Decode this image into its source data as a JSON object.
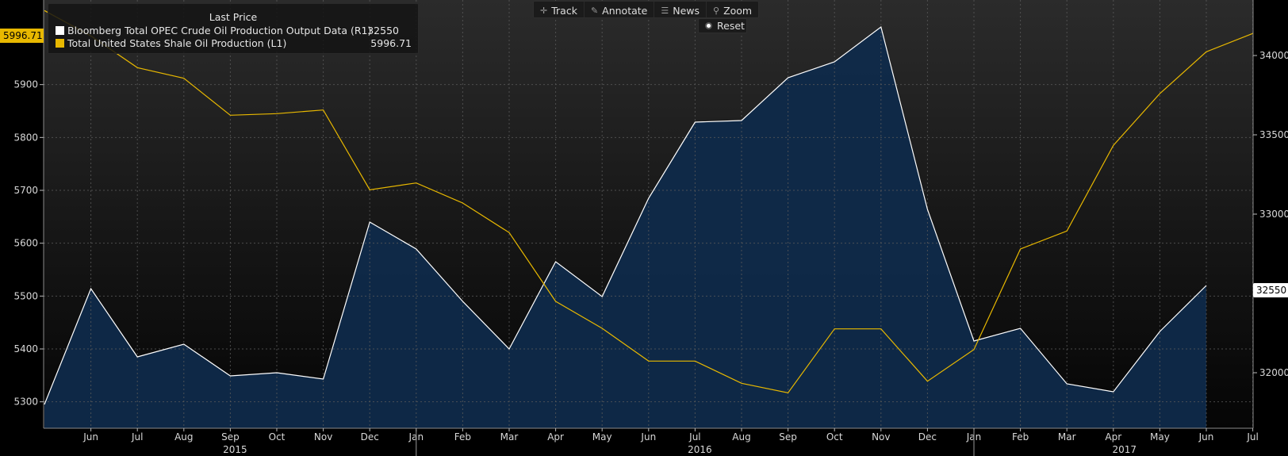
{
  "legend": {
    "title": "Last Price",
    "series": [
      {
        "label": "Bloomberg Total OPEC Crude Oil Production Output Data  (R1)",
        "value": "32550",
        "color": "#ffffff"
      },
      {
        "label": "Total United States Shale Oil Production  (L1)",
        "value": "5996.71",
        "color": "#e8b800"
      }
    ]
  },
  "toolbar": {
    "track_label": "Track",
    "annotate_label": "Annotate",
    "news_label": "News",
    "zoom_label": "Zoom",
    "reset_label": "Reset"
  },
  "tags": {
    "left_value": "5996.71",
    "right_value": "32550"
  },
  "chart_data": {
    "type": "line",
    "x": [
      "2015-05",
      "2015-06",
      "2015-07",
      "2015-08",
      "2015-09",
      "2015-10",
      "2015-11",
      "2015-12",
      "2016-01",
      "2016-02",
      "2016-03",
      "2016-04",
      "2016-05",
      "2016-06",
      "2016-07",
      "2016-08",
      "2016-09",
      "2016-10",
      "2016-11",
      "2016-12",
      "2017-01",
      "2017-02",
      "2017-03",
      "2017-04",
      "2017-05",
      "2017-06",
      "2017-07"
    ],
    "x_tick_labels": [
      "Jun",
      "Jul",
      "Aug",
      "Sep",
      "Oct",
      "Nov",
      "Dec",
      "Jan",
      "Feb",
      "Mar",
      "Apr",
      "May",
      "Jun",
      "Jul",
      "Aug",
      "Sep",
      "Oct",
      "Nov",
      "Dec",
      "Jan",
      "Feb",
      "Mar",
      "Apr",
      "May",
      "Jun",
      "Jul"
    ],
    "year_labels": [
      "2015",
      "2016",
      "2017"
    ],
    "left_axis": {
      "ylim": [
        5250,
        6060
      ],
      "ticks": [
        5300,
        5400,
        5500,
        5600,
        5700,
        5800,
        5900
      ]
    },
    "right_axis": {
      "ylim": [
        31650,
        34350
      ],
      "ticks": [
        32000,
        32500,
        33000,
        33500,
        34000
      ]
    },
    "grid": true,
    "series": [
      {
        "name": "Bloomberg Total OPEC Crude Oil Production Output Data",
        "axis": "right",
        "style": "area",
        "color": "#ffffff",
        "fill": "#0f2a4a",
        "values": [
          31800,
          32530,
          32100,
          32180,
          31980,
          32000,
          31960,
          32950,
          32780,
          32450,
          32150,
          32700,
          32480,
          33100,
          33580,
          33590,
          33860,
          33960,
          34180,
          33030,
          32200,
          32280,
          31930,
          31880,
          32260,
          32550,
          null
        ]
      },
      {
        "name": "Total United States Shale Oil Production",
        "axis": "left",
        "style": "line",
        "color": "#e8b800",
        "values": [
          6040,
          5992,
          5932,
          5912,
          5842,
          5845,
          5852,
          5701,
          5714,
          5676,
          5620,
          5490,
          5439,
          5377,
          5377,
          5335,
          5317,
          5438,
          5438,
          5339,
          5399,
          5589,
          5623,
          5785,
          5883,
          5962,
          5996.71
        ]
      }
    ]
  }
}
